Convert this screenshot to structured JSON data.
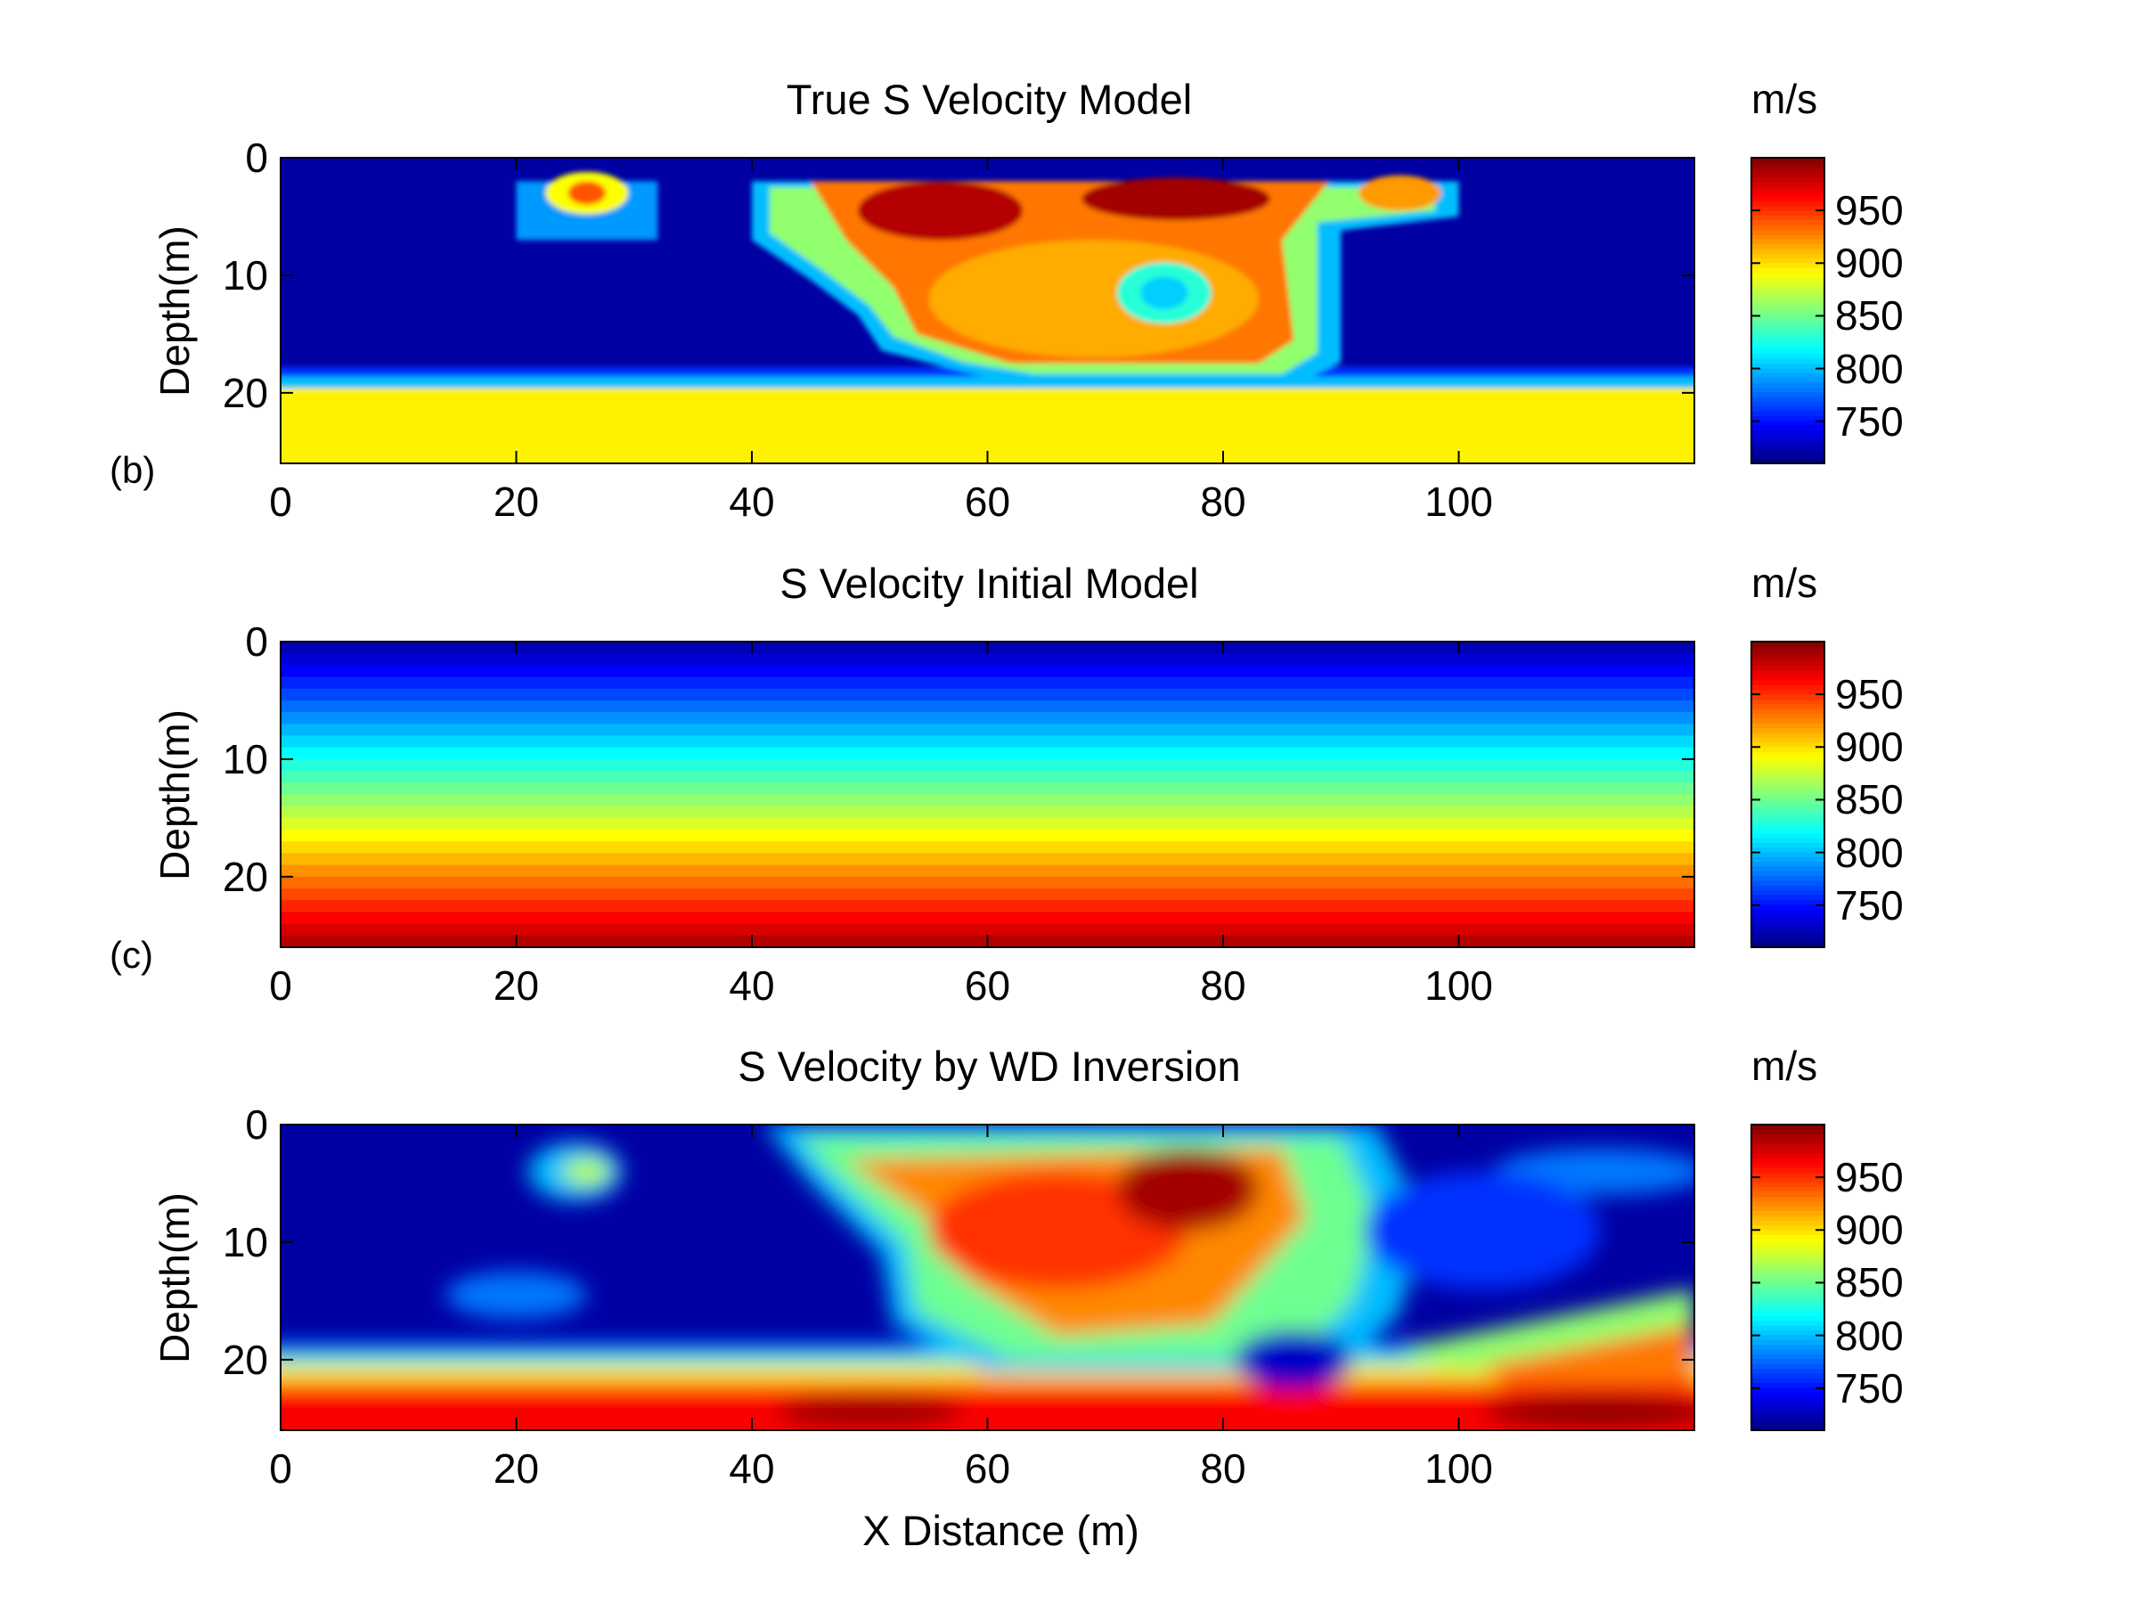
{
  "panel_labels": [
    "(b)",
    "(c)"
  ],
  "chart_data": [
    {
      "type": "heatmap",
      "title": "True S Velocity Model",
      "xlabel": "",
      "ylabel": "Depth(m)",
      "xlim": [
        0,
        120
      ],
      "ylim": [
        0,
        26
      ],
      "y_reversed": true,
      "xticks": [
        "0",
        "20",
        "40",
        "60",
        "80",
        "100"
      ],
      "yticks": [
        "0",
        "10",
        "20"
      ],
      "colorbar": {
        "unit": "m/s",
        "ticks": [
          "750",
          "800",
          "850",
          "900",
          "950"
        ],
        "range": [
          710,
          1000
        ],
        "colormap": "jet"
      },
      "background_value": 720,
      "features": [
        {
          "kind": "rect",
          "x": [
            0,
            120
          ],
          "y": [
            19.6,
            26
          ],
          "value": 895
        },
        {
          "kind": "rect",
          "x": [
            0,
            120
          ],
          "y": [
            18.6,
            19.6
          ],
          "value": 800
        },
        {
          "kind": "rect",
          "x": [
            0,
            120
          ],
          "y": [
            17.8,
            18.6
          ],
          "value": 760
        },
        {
          "kind": "polygon",
          "points": [
            [
              40,
              2
            ],
            [
              100,
              2
            ],
            [
              100,
              5
            ],
            [
              90,
              6.2
            ],
            [
              90,
              17.4
            ],
            [
              86,
              19.4
            ],
            [
              63,
              19.4
            ],
            [
              58,
              18.2
            ],
            [
              51,
              16.4
            ],
            [
              49,
              13.4
            ],
            [
              45,
              10.4
            ],
            [
              40,
              7
            ]
          ],
          "value": 800
        },
        {
          "kind": "polygon",
          "points": [
            [
              41.5,
              2.5
            ],
            [
              98,
              2.5
            ],
            [
              98,
              4.5
            ],
            [
              88,
              5.5
            ],
            [
              88,
              16.6
            ],
            [
              85,
              18.4
            ],
            [
              64,
              18.4
            ],
            [
              58,
              17.4
            ],
            [
              52,
              15.2
            ],
            [
              50,
              12.6
            ],
            [
              46,
              9.6
            ],
            [
              41.5,
              6.4
            ]
          ],
          "value": 860
        },
        {
          "kind": "polygon",
          "points": [
            [
              45,
              2
            ],
            [
              89,
              2
            ],
            [
              85,
              7
            ],
            [
              86,
              15.5
            ],
            [
              83,
              17.5
            ],
            [
              62,
              17.5
            ],
            [
              54,
              15
            ],
            [
              52,
              11
            ],
            [
              48,
              7
            ]
          ],
          "value": 930
        },
        {
          "kind": "ellipse",
          "cx": 56,
          "cy": 4.5,
          "rx": 7,
          "ry": 2.5,
          "value": 985
        },
        {
          "kind": "ellipse",
          "cx": 76,
          "cy": 3.5,
          "rx": 8,
          "ry": 1.8,
          "value": 990
        },
        {
          "kind": "ellipse",
          "cx": 69,
          "cy": 12,
          "rx": 14,
          "ry": 5,
          "value": 915
        },
        {
          "kind": "ellipse",
          "cx": 75,
          "cy": 11.5,
          "rx": 4,
          "ry": 2.6,
          "value": 830
        },
        {
          "kind": "ellipse",
          "cx": 75,
          "cy": 11.5,
          "rx": 2,
          "ry": 1.4,
          "value": 805
        },
        {
          "kind": "rect",
          "x": [
            20,
            32
          ],
          "y": [
            2,
            7
          ],
          "value": 790
        },
        {
          "kind": "ellipse",
          "cx": 26,
          "cy": 3,
          "rx": 3.5,
          "ry": 1.8,
          "value": 890
        },
        {
          "kind": "ellipse",
          "cx": 26,
          "cy": 3,
          "rx": 1.6,
          "ry": 1,
          "value": 940
        },
        {
          "kind": "ellipse",
          "cx": 95,
          "cy": 3,
          "rx": 3.5,
          "ry": 1.5,
          "value": 920
        }
      ]
    },
    {
      "type": "heatmap",
      "title": "S Velocity Initial Model",
      "xlabel": "",
      "ylabel": "Depth(m)",
      "xlim": [
        0,
        120
      ],
      "ylim": [
        0,
        26
      ],
      "y_reversed": true,
      "xticks": [
        "0",
        "20",
        "40",
        "60",
        "80",
        "100"
      ],
      "yticks": [
        "0",
        "10",
        "20"
      ],
      "colorbar": {
        "unit": "m/s",
        "ticks": [
          "750",
          "800",
          "850",
          "900",
          "950"
        ],
        "range": [
          710,
          1000
        ],
        "colormap": "jet"
      },
      "gradient": {
        "depth": [
          0,
          26
        ],
        "value": [
          720,
          990
        ]
      }
    },
    {
      "type": "heatmap",
      "title": "S Velocity by WD Inversion",
      "xlabel": "X Distance (m)",
      "ylabel": "Depth(m)",
      "xlim": [
        0,
        120
      ],
      "ylim": [
        0,
        26
      ],
      "y_reversed": true,
      "xticks": [
        "0",
        "20",
        "40",
        "60",
        "80",
        "100"
      ],
      "yticks": [
        "0",
        "10",
        "20"
      ],
      "colorbar": {
        "unit": "m/s",
        "ticks": [
          "750",
          "800",
          "850",
          "900",
          "950"
        ],
        "range": [
          710,
          1000
        ],
        "colormap": "jet"
      },
      "background_value": 720,
      "features": [
        {
          "kind": "rect",
          "x": [
            0,
            120
          ],
          "y": [
            22,
            26
          ],
          "value": 965
        },
        {
          "kind": "rect",
          "x": [
            0,
            120
          ],
          "y": [
            20.5,
            22
          ],
          "value": 900
        },
        {
          "kind": "rect",
          "x": [
            0,
            120
          ],
          "y": [
            19.5,
            20.5
          ],
          "value": 830
        },
        {
          "kind": "rect",
          "x": [
            0,
            120
          ],
          "y": [
            18.5,
            19.5
          ],
          "value": 770
        },
        {
          "kind": "polygon",
          "points": [
            [
              41,
              0
            ],
            [
              93,
              0
            ],
            [
              97,
              8
            ],
            [
              95,
              16
            ],
            [
              90,
              21
            ],
            [
              60,
              21
            ],
            [
              52,
              17
            ],
            [
              51,
              11
            ],
            [
              45,
              5
            ]
          ],
          "value": 800
        },
        {
          "kind": "polygon",
          "points": [
            [
              44,
              1
            ],
            [
              90,
              1
            ],
            [
              93,
              8
            ],
            [
              91,
              15
            ],
            [
              86,
              20
            ],
            [
              62,
              20
            ],
            [
              54,
              16
            ],
            [
              53,
              10
            ],
            [
              47,
              4.5
            ]
          ],
          "value": 850
        },
        {
          "kind": "polygon",
          "points": [
            [
              48,
              3
            ],
            [
              85,
              2
            ],
            [
              87,
              8
            ],
            [
              79,
              17
            ],
            [
              66,
              18
            ],
            [
              58,
              13
            ],
            [
              55,
              8
            ]
          ],
          "value": 925
        },
        {
          "kind": "ellipse",
          "cx": 66,
          "cy": 9,
          "rx": 11,
          "ry": 5,
          "value": 950
        },
        {
          "kind": "ellipse",
          "cx": 77,
          "cy": 5.5,
          "rx": 6,
          "ry": 3.5,
          "value": 990
        },
        {
          "kind": "ellipse",
          "cx": 86,
          "cy": 20,
          "rx": 5,
          "ry": 2.5,
          "value": 730
        },
        {
          "kind": "ellipse",
          "cx": 25,
          "cy": 4,
          "rx": 4,
          "ry": 2.5,
          "value": 800
        },
        {
          "kind": "ellipse",
          "cx": 26,
          "cy": 4,
          "rx": 2,
          "ry": 1.2,
          "value": 870
        },
        {
          "kind": "ellipse",
          "cx": 20,
          "cy": 14.5,
          "rx": 6,
          "ry": 2,
          "value": 780
        },
        {
          "kind": "ellipse",
          "cx": 112,
          "cy": 4,
          "rx": 9,
          "ry": 2,
          "value": 780
        },
        {
          "kind": "ellipse",
          "cx": 102,
          "cy": 9,
          "rx": 10,
          "ry": 5,
          "value": 760
        },
        {
          "kind": "polygon",
          "points": [
            [
              95,
              19
            ],
            [
              120,
              14
            ],
            [
              120,
              19
            ],
            [
              100,
              21
            ]
          ],
          "value": 860
        },
        {
          "kind": "polygon",
          "points": [
            [
              102,
              20.5
            ],
            [
              120,
              17
            ],
            [
              120,
              22
            ],
            [
              104,
              22
            ]
          ],
          "value": 930
        },
        {
          "kind": "ellipse",
          "cx": 50,
          "cy": 24.5,
          "rx": 8,
          "ry": 1.5,
          "value": 990
        },
        {
          "kind": "ellipse",
          "cx": 112,
          "cy": 24.5,
          "rx": 10,
          "ry": 1.5,
          "value": 995
        }
      ]
    }
  ]
}
